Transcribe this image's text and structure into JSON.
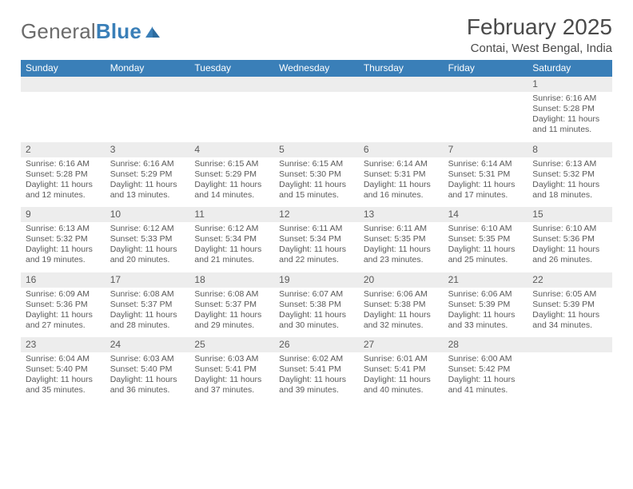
{
  "logo": {
    "general": "General",
    "blue": "Blue"
  },
  "title": "February 2025",
  "location": "Contai, West Bengal, India",
  "weekday_header_bg": "#3a7fb8",
  "daynum_bg": "#ededed",
  "weekdays": [
    "Sunday",
    "Monday",
    "Tuesday",
    "Wednesday",
    "Thursday",
    "Friday",
    "Saturday"
  ],
  "weeks": [
    [
      {
        "n": "",
        "sr": "",
        "ss": "",
        "dl": ""
      },
      {
        "n": "",
        "sr": "",
        "ss": "",
        "dl": ""
      },
      {
        "n": "",
        "sr": "",
        "ss": "",
        "dl": ""
      },
      {
        "n": "",
        "sr": "",
        "ss": "",
        "dl": ""
      },
      {
        "n": "",
        "sr": "",
        "ss": "",
        "dl": ""
      },
      {
        "n": "",
        "sr": "",
        "ss": "",
        "dl": ""
      },
      {
        "n": "1",
        "sr": "Sunrise: 6:16 AM",
        "ss": "Sunset: 5:28 PM",
        "dl": "Daylight: 11 hours and 11 minutes."
      }
    ],
    [
      {
        "n": "2",
        "sr": "Sunrise: 6:16 AM",
        "ss": "Sunset: 5:28 PM",
        "dl": "Daylight: 11 hours and 12 minutes."
      },
      {
        "n": "3",
        "sr": "Sunrise: 6:16 AM",
        "ss": "Sunset: 5:29 PM",
        "dl": "Daylight: 11 hours and 13 minutes."
      },
      {
        "n": "4",
        "sr": "Sunrise: 6:15 AM",
        "ss": "Sunset: 5:29 PM",
        "dl": "Daylight: 11 hours and 14 minutes."
      },
      {
        "n": "5",
        "sr": "Sunrise: 6:15 AM",
        "ss": "Sunset: 5:30 PM",
        "dl": "Daylight: 11 hours and 15 minutes."
      },
      {
        "n": "6",
        "sr": "Sunrise: 6:14 AM",
        "ss": "Sunset: 5:31 PM",
        "dl": "Daylight: 11 hours and 16 minutes."
      },
      {
        "n": "7",
        "sr": "Sunrise: 6:14 AM",
        "ss": "Sunset: 5:31 PM",
        "dl": "Daylight: 11 hours and 17 minutes."
      },
      {
        "n": "8",
        "sr": "Sunrise: 6:13 AM",
        "ss": "Sunset: 5:32 PM",
        "dl": "Daylight: 11 hours and 18 minutes."
      }
    ],
    [
      {
        "n": "9",
        "sr": "Sunrise: 6:13 AM",
        "ss": "Sunset: 5:32 PM",
        "dl": "Daylight: 11 hours and 19 minutes."
      },
      {
        "n": "10",
        "sr": "Sunrise: 6:12 AM",
        "ss": "Sunset: 5:33 PM",
        "dl": "Daylight: 11 hours and 20 minutes."
      },
      {
        "n": "11",
        "sr": "Sunrise: 6:12 AM",
        "ss": "Sunset: 5:34 PM",
        "dl": "Daylight: 11 hours and 21 minutes."
      },
      {
        "n": "12",
        "sr": "Sunrise: 6:11 AM",
        "ss": "Sunset: 5:34 PM",
        "dl": "Daylight: 11 hours and 22 minutes."
      },
      {
        "n": "13",
        "sr": "Sunrise: 6:11 AM",
        "ss": "Sunset: 5:35 PM",
        "dl": "Daylight: 11 hours and 23 minutes."
      },
      {
        "n": "14",
        "sr": "Sunrise: 6:10 AM",
        "ss": "Sunset: 5:35 PM",
        "dl": "Daylight: 11 hours and 25 minutes."
      },
      {
        "n": "15",
        "sr": "Sunrise: 6:10 AM",
        "ss": "Sunset: 5:36 PM",
        "dl": "Daylight: 11 hours and 26 minutes."
      }
    ],
    [
      {
        "n": "16",
        "sr": "Sunrise: 6:09 AM",
        "ss": "Sunset: 5:36 PM",
        "dl": "Daylight: 11 hours and 27 minutes."
      },
      {
        "n": "17",
        "sr": "Sunrise: 6:08 AM",
        "ss": "Sunset: 5:37 PM",
        "dl": "Daylight: 11 hours and 28 minutes."
      },
      {
        "n": "18",
        "sr": "Sunrise: 6:08 AM",
        "ss": "Sunset: 5:37 PM",
        "dl": "Daylight: 11 hours and 29 minutes."
      },
      {
        "n": "19",
        "sr": "Sunrise: 6:07 AM",
        "ss": "Sunset: 5:38 PM",
        "dl": "Daylight: 11 hours and 30 minutes."
      },
      {
        "n": "20",
        "sr": "Sunrise: 6:06 AM",
        "ss": "Sunset: 5:38 PM",
        "dl": "Daylight: 11 hours and 32 minutes."
      },
      {
        "n": "21",
        "sr": "Sunrise: 6:06 AM",
        "ss": "Sunset: 5:39 PM",
        "dl": "Daylight: 11 hours and 33 minutes."
      },
      {
        "n": "22",
        "sr": "Sunrise: 6:05 AM",
        "ss": "Sunset: 5:39 PM",
        "dl": "Daylight: 11 hours and 34 minutes."
      }
    ],
    [
      {
        "n": "23",
        "sr": "Sunrise: 6:04 AM",
        "ss": "Sunset: 5:40 PM",
        "dl": "Daylight: 11 hours and 35 minutes."
      },
      {
        "n": "24",
        "sr": "Sunrise: 6:03 AM",
        "ss": "Sunset: 5:40 PM",
        "dl": "Daylight: 11 hours and 36 minutes."
      },
      {
        "n": "25",
        "sr": "Sunrise: 6:03 AM",
        "ss": "Sunset: 5:41 PM",
        "dl": "Daylight: 11 hours and 37 minutes."
      },
      {
        "n": "26",
        "sr": "Sunrise: 6:02 AM",
        "ss": "Sunset: 5:41 PM",
        "dl": "Daylight: 11 hours and 39 minutes."
      },
      {
        "n": "27",
        "sr": "Sunrise: 6:01 AM",
        "ss": "Sunset: 5:41 PM",
        "dl": "Daylight: 11 hours and 40 minutes."
      },
      {
        "n": "28",
        "sr": "Sunrise: 6:00 AM",
        "ss": "Sunset: 5:42 PM",
        "dl": "Daylight: 11 hours and 41 minutes."
      },
      {
        "n": "",
        "sr": "",
        "ss": "",
        "dl": ""
      }
    ]
  ]
}
